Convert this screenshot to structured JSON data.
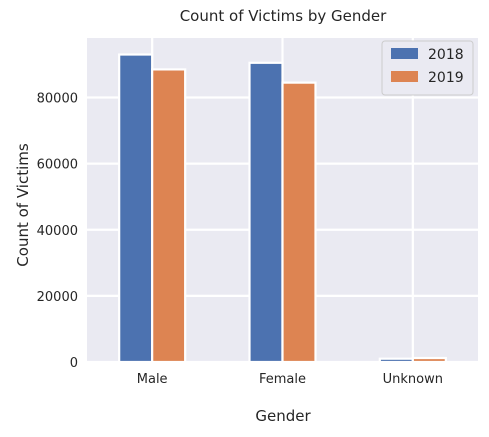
{
  "chart_data": {
    "type": "bar",
    "title": "Count of Victims by Gender",
    "xlabel": "Gender",
    "ylabel": "Count of Victims",
    "categories": [
      "Male",
      "Female",
      "Unknown"
    ],
    "series": [
      {
        "name": "2018",
        "values": [
          93000,
          90500,
          1000
        ],
        "color": "#4c72b0"
      },
      {
        "name": "2019",
        "values": [
          88500,
          84500,
          1200
        ],
        "color": "#dd8452"
      }
    ],
    "ylim": [
      0,
      98000
    ],
    "yticks": [
      0,
      20000,
      40000,
      60000,
      80000
    ],
    "grid": true,
    "legend_position": "top-right",
    "plot_background": "#eaeaf2"
  }
}
